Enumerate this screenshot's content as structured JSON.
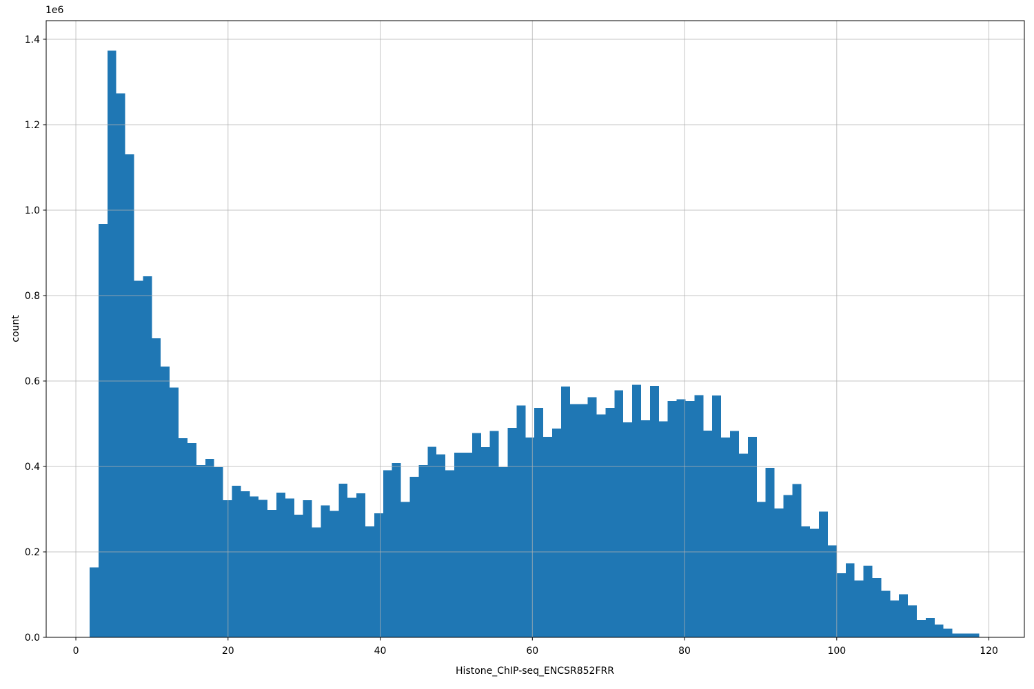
{
  "chart_data": {
    "type": "bar",
    "subtype": "histogram",
    "title": "",
    "xlabel": "Histone_ChIP-seq_ENCSR852FRR",
    "ylabel": "count",
    "y_offset_text": "1e6",
    "grid": true,
    "legend": false,
    "bar_color": "#1f77b4",
    "grid_color": "#b0b0b0",
    "spine_color": "#000000",
    "xlim": [
      -3.9,
      124.66
    ],
    "ylim": [
      0,
      1443500
    ],
    "x_tick_values": [
      0,
      20,
      40,
      60,
      80,
      100,
      120
    ],
    "x_tick_labels": [
      "0",
      "20",
      "40",
      "60",
      "80",
      "100",
      "120"
    ],
    "y_tick_values": [
      0,
      200000,
      400000,
      600000,
      800000,
      1000000,
      1200000,
      1400000
    ],
    "y_tick_labels": [
      "0.0",
      "0.2",
      "0.4",
      "0.6",
      "0.8",
      "1.0",
      "1.2",
      "1.4"
    ],
    "bin_start": 1.81,
    "bin_width": 1.169,
    "counts": [
      164000,
      968000,
      1373000,
      1273000,
      1131000,
      835000,
      845000,
      700000,
      634000,
      585000,
      466000,
      455000,
      403000,
      418000,
      398000,
      321000,
      355000,
      342000,
      330000,
      322000,
      298000,
      339000,
      325000,
      287000,
      321000,
      257000,
      309000,
      296000,
      360000,
      327000,
      337000,
      260000,
      290000,
      391000,
      408000,
      317000,
      376000,
      403000,
      446000,
      428000,
      391000,
      432000,
      432000,
      478000,
      445000,
      483000,
      398000,
      490000,
      543000,
      468000,
      537000,
      469000,
      489000,
      587000,
      546000,
      546000,
      562000,
      522000,
      537000,
      578000,
      503000,
      591000,
      508000,
      589000,
      506000,
      553000,
      557000,
      553000,
      567000,
      484000,
      566000,
      468000,
      483000,
      430000,
      469000,
      317000,
      397000,
      302000,
      333000,
      359000,
      260000,
      254000,
      294000,
      215000,
      150000,
      173000,
      133000,
      168000,
      139000,
      109000,
      86000,
      101000,
      75000,
      40000,
      45000,
      30000,
      20000,
      9000,
      9000,
      9000
    ]
  }
}
